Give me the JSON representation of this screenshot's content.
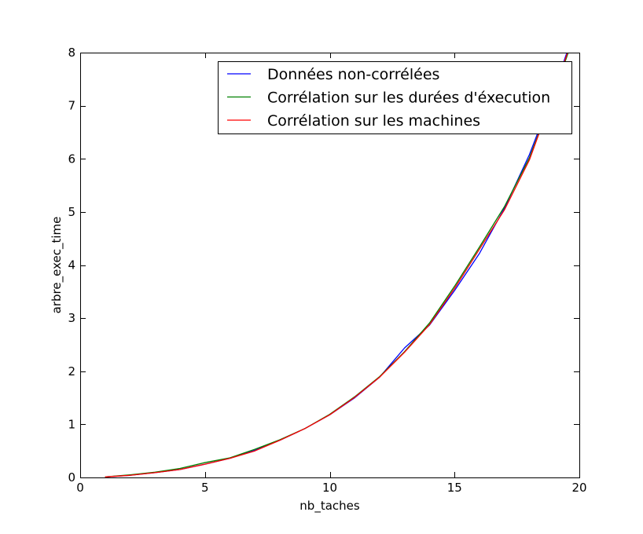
{
  "chart_data": {
    "type": "line",
    "title": "",
    "xlabel": "nb_taches",
    "ylabel": "arbre_exec_time",
    "xlim": [
      0,
      20
    ],
    "ylim": [
      0,
      8
    ],
    "xticks": [
      0,
      5,
      10,
      15,
      20
    ],
    "yticks": [
      0,
      1,
      2,
      3,
      4,
      5,
      6,
      7,
      8
    ],
    "grid": false,
    "legend_position": "top-right",
    "series": [
      {
        "name": "Données non-corrélées",
        "color": "#0000ff",
        "x": [
          1,
          2,
          3,
          4,
          5,
          6,
          7,
          8,
          9,
          10,
          11,
          12,
          13,
          14,
          15,
          16,
          17,
          18,
          19,
          20
        ],
        "y": [
          0.01,
          0.04,
          0.09,
          0.15,
          0.25,
          0.36,
          0.51,
          0.7,
          0.92,
          1.18,
          1.5,
          1.89,
          2.44,
          2.87,
          3.52,
          4.22,
          5.07,
          6.08,
          7.3,
          8.7
        ]
      },
      {
        "name": "Corrélation sur les durées d'éxecution",
        "color": "#008000",
        "x": [
          1,
          2,
          3,
          4,
          5,
          6,
          7,
          8,
          9,
          10,
          11,
          12,
          13,
          14,
          15,
          16,
          17,
          18,
          19,
          20
        ],
        "y": [
          0.01,
          0.05,
          0.1,
          0.17,
          0.28,
          0.37,
          0.53,
          0.71,
          0.92,
          1.19,
          1.52,
          1.9,
          2.37,
          2.91,
          3.6,
          4.34,
          5.1,
          6.02,
          7.25,
          8.6
        ]
      },
      {
        "name": "Corrélation sur les machines",
        "color": "#ff0000",
        "x": [
          1,
          2,
          3,
          4,
          5,
          6,
          7,
          8,
          9,
          10,
          11,
          12,
          13,
          14,
          15,
          16,
          17,
          18,
          19,
          20
        ],
        "y": [
          0.01,
          0.04,
          0.09,
          0.15,
          0.25,
          0.36,
          0.5,
          0.7,
          0.92,
          1.18,
          1.51,
          1.89,
          2.36,
          2.88,
          3.56,
          4.3,
          5.04,
          5.98,
          7.27,
          8.65
        ]
      }
    ]
  }
}
